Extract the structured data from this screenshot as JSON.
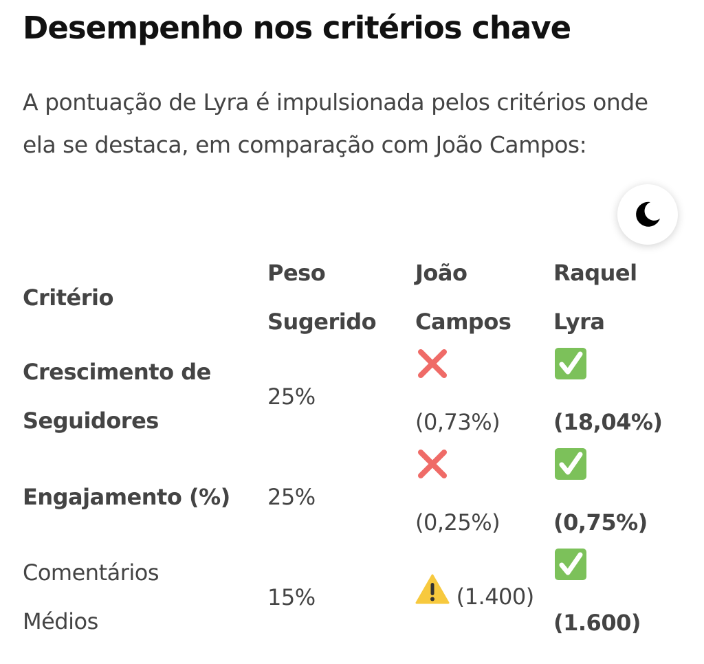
{
  "title": "Desempenho nos critérios chave",
  "intro": "A pontuação de Lyra é impulsionada pelos critérios onde ela se destaca, em comparação com João Campos:",
  "theme_toggle": {
    "icon": "moon-icon"
  },
  "table": {
    "headers": [
      {
        "l1": "Critério",
        "l2": ""
      },
      {
        "l1": "Peso",
        "l2": "Sugerido"
      },
      {
        "l1": "João",
        "l2": "Campos"
      },
      {
        "l1": "Raquel",
        "l2": "Lyra"
      }
    ],
    "rows": [
      {
        "criterio_l1": "Crescimento de",
        "criterio_l2": "Seguidores",
        "criterio_bold": true,
        "peso": "25%",
        "joao_icon": "cross-mark-icon",
        "joao": "(0,73%)",
        "raquel_icon": "check-mark-icon",
        "raquel": "(18,04%)"
      },
      {
        "criterio_l1": "Engajamento (%)",
        "criterio_l2": "",
        "criterio_bold": true,
        "peso": "25%",
        "joao_icon": "cross-mark-icon",
        "joao": "(0,25%)",
        "raquel_icon": "check-mark-icon",
        "raquel": "(0,75%)"
      },
      {
        "criterio_l1": "Comentários",
        "criterio_l2": "Médios",
        "criterio_bold": false,
        "peso": "15%",
        "joao_icon": "warning-icon",
        "joao": "(1.400)",
        "raquel_icon": "check-mark-icon",
        "raquel": "(1.600)"
      }
    ]
  },
  "colors": {
    "cross": "#ef6b67",
    "check": "#7cc15a",
    "warning": "#f7c93e",
    "text": "#444444",
    "title": "#111111"
  }
}
